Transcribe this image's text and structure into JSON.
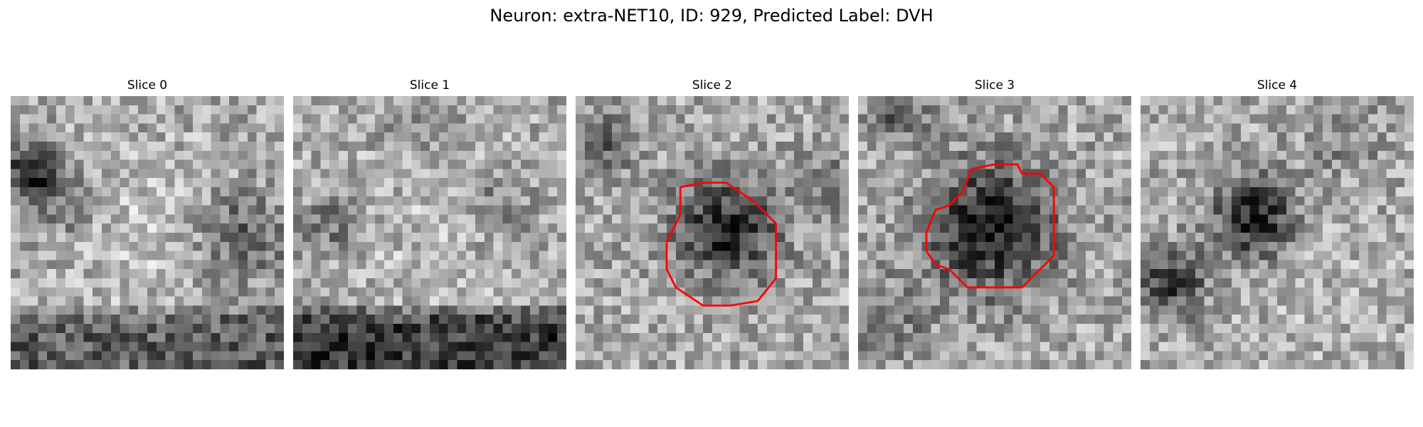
{
  "figure": {
    "title": "Neuron: extra-NET10, ID: 929, Predicted Label: DVH"
  },
  "panels": [
    {
      "title": "Slice 0"
    },
    {
      "title": "Slice 1"
    },
    {
      "title": "Slice 2"
    },
    {
      "title": "Slice 3"
    },
    {
      "title": "Slice 4"
    }
  ],
  "colors": {
    "background": "#ffffff",
    "contour": "#ff0000",
    "colormap": "grayscale"
  }
}
